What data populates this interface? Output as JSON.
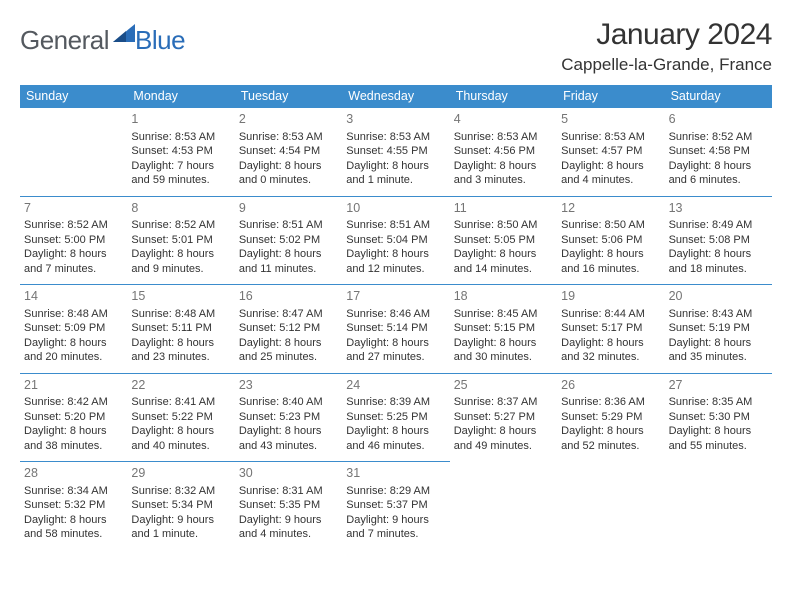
{
  "logo": {
    "general": "General",
    "blue": "Blue"
  },
  "header": {
    "title": "January 2024",
    "location": "Cappelle-la-Grande, France"
  },
  "colors": {
    "header_bg": "#3b8ccc",
    "header_text": "#ffffff",
    "daynum": "#757575",
    "body_text": "#333333",
    "logo_gray": "#54595f",
    "logo_blue": "#2a6db8"
  },
  "weekdays": [
    "Sunday",
    "Monday",
    "Tuesday",
    "Wednesday",
    "Thursday",
    "Friday",
    "Saturday"
  ],
  "leading_blanks": 1,
  "days": [
    {
      "n": "1",
      "sunrise": "Sunrise: 8:53 AM",
      "sunset": "Sunset: 4:53 PM",
      "daylight": "Daylight: 7 hours and 59 minutes."
    },
    {
      "n": "2",
      "sunrise": "Sunrise: 8:53 AM",
      "sunset": "Sunset: 4:54 PM",
      "daylight": "Daylight: 8 hours and 0 minutes."
    },
    {
      "n": "3",
      "sunrise": "Sunrise: 8:53 AM",
      "sunset": "Sunset: 4:55 PM",
      "daylight": "Daylight: 8 hours and 1 minute."
    },
    {
      "n": "4",
      "sunrise": "Sunrise: 8:53 AM",
      "sunset": "Sunset: 4:56 PM",
      "daylight": "Daylight: 8 hours and 3 minutes."
    },
    {
      "n": "5",
      "sunrise": "Sunrise: 8:53 AM",
      "sunset": "Sunset: 4:57 PM",
      "daylight": "Daylight: 8 hours and 4 minutes."
    },
    {
      "n": "6",
      "sunrise": "Sunrise: 8:52 AM",
      "sunset": "Sunset: 4:58 PM",
      "daylight": "Daylight: 8 hours and 6 minutes."
    },
    {
      "n": "7",
      "sunrise": "Sunrise: 8:52 AM",
      "sunset": "Sunset: 5:00 PM",
      "daylight": "Daylight: 8 hours and 7 minutes."
    },
    {
      "n": "8",
      "sunrise": "Sunrise: 8:52 AM",
      "sunset": "Sunset: 5:01 PM",
      "daylight": "Daylight: 8 hours and 9 minutes."
    },
    {
      "n": "9",
      "sunrise": "Sunrise: 8:51 AM",
      "sunset": "Sunset: 5:02 PM",
      "daylight": "Daylight: 8 hours and 11 minutes."
    },
    {
      "n": "10",
      "sunrise": "Sunrise: 8:51 AM",
      "sunset": "Sunset: 5:04 PM",
      "daylight": "Daylight: 8 hours and 12 minutes."
    },
    {
      "n": "11",
      "sunrise": "Sunrise: 8:50 AM",
      "sunset": "Sunset: 5:05 PM",
      "daylight": "Daylight: 8 hours and 14 minutes."
    },
    {
      "n": "12",
      "sunrise": "Sunrise: 8:50 AM",
      "sunset": "Sunset: 5:06 PM",
      "daylight": "Daylight: 8 hours and 16 minutes."
    },
    {
      "n": "13",
      "sunrise": "Sunrise: 8:49 AM",
      "sunset": "Sunset: 5:08 PM",
      "daylight": "Daylight: 8 hours and 18 minutes."
    },
    {
      "n": "14",
      "sunrise": "Sunrise: 8:48 AM",
      "sunset": "Sunset: 5:09 PM",
      "daylight": "Daylight: 8 hours and 20 minutes."
    },
    {
      "n": "15",
      "sunrise": "Sunrise: 8:48 AM",
      "sunset": "Sunset: 5:11 PM",
      "daylight": "Daylight: 8 hours and 23 minutes."
    },
    {
      "n": "16",
      "sunrise": "Sunrise: 8:47 AM",
      "sunset": "Sunset: 5:12 PM",
      "daylight": "Daylight: 8 hours and 25 minutes."
    },
    {
      "n": "17",
      "sunrise": "Sunrise: 8:46 AM",
      "sunset": "Sunset: 5:14 PM",
      "daylight": "Daylight: 8 hours and 27 minutes."
    },
    {
      "n": "18",
      "sunrise": "Sunrise: 8:45 AM",
      "sunset": "Sunset: 5:15 PM",
      "daylight": "Daylight: 8 hours and 30 minutes."
    },
    {
      "n": "19",
      "sunrise": "Sunrise: 8:44 AM",
      "sunset": "Sunset: 5:17 PM",
      "daylight": "Daylight: 8 hours and 32 minutes."
    },
    {
      "n": "20",
      "sunrise": "Sunrise: 8:43 AM",
      "sunset": "Sunset: 5:19 PM",
      "daylight": "Daylight: 8 hours and 35 minutes."
    },
    {
      "n": "21",
      "sunrise": "Sunrise: 8:42 AM",
      "sunset": "Sunset: 5:20 PM",
      "daylight": "Daylight: 8 hours and 38 minutes."
    },
    {
      "n": "22",
      "sunrise": "Sunrise: 8:41 AM",
      "sunset": "Sunset: 5:22 PM",
      "daylight": "Daylight: 8 hours and 40 minutes."
    },
    {
      "n": "23",
      "sunrise": "Sunrise: 8:40 AM",
      "sunset": "Sunset: 5:23 PM",
      "daylight": "Daylight: 8 hours and 43 minutes."
    },
    {
      "n": "24",
      "sunrise": "Sunrise: 8:39 AM",
      "sunset": "Sunset: 5:25 PM",
      "daylight": "Daylight: 8 hours and 46 minutes."
    },
    {
      "n": "25",
      "sunrise": "Sunrise: 8:37 AM",
      "sunset": "Sunset: 5:27 PM",
      "daylight": "Daylight: 8 hours and 49 minutes."
    },
    {
      "n": "26",
      "sunrise": "Sunrise: 8:36 AM",
      "sunset": "Sunset: 5:29 PM",
      "daylight": "Daylight: 8 hours and 52 minutes."
    },
    {
      "n": "27",
      "sunrise": "Sunrise: 8:35 AM",
      "sunset": "Sunset: 5:30 PM",
      "daylight": "Daylight: 8 hours and 55 minutes."
    },
    {
      "n": "28",
      "sunrise": "Sunrise: 8:34 AM",
      "sunset": "Sunset: 5:32 PM",
      "daylight": "Daylight: 8 hours and 58 minutes."
    },
    {
      "n": "29",
      "sunrise": "Sunrise: 8:32 AM",
      "sunset": "Sunset: 5:34 PM",
      "daylight": "Daylight: 9 hours and 1 minute."
    },
    {
      "n": "30",
      "sunrise": "Sunrise: 8:31 AM",
      "sunset": "Sunset: 5:35 PM",
      "daylight": "Daylight: 9 hours and 4 minutes."
    },
    {
      "n": "31",
      "sunrise": "Sunrise: 8:29 AM",
      "sunset": "Sunset: 5:37 PM",
      "daylight": "Daylight: 9 hours and 7 minutes."
    }
  ]
}
